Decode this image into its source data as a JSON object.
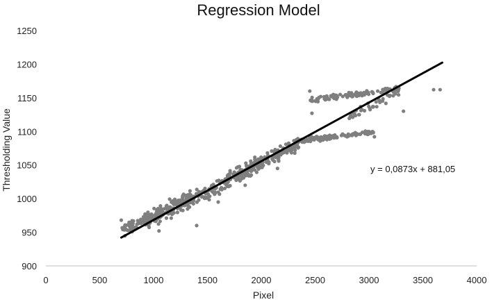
{
  "chart_data": {
    "type": "scatter",
    "title": "Regression Model",
    "xlabel": "Pixel",
    "ylabel": "Thresholding Value",
    "xlim": [
      0,
      4000
    ],
    "ylim": [
      900,
      1250
    ],
    "xticks": [
      "0",
      "500",
      "1000",
      "1500",
      "2000",
      "2500",
      "3000",
      "3500",
      "4000"
    ],
    "yticks": [
      "900",
      "950",
      "1000",
      "1050",
      "1100",
      "1150",
      "1200",
      "1250"
    ],
    "grid": false,
    "point_color": "#7f7f7f",
    "trendline": {
      "equation": "y = 0,0873x + 881,05",
      "slope": 0.0873,
      "intercept": 881.05,
      "x_start": 700,
      "x_end": 3680,
      "color": "#000000"
    },
    "clusters": [
      {
        "x_range": [
          700,
          1050
        ],
        "y_center": 965,
        "y_spread": 12,
        "count": 90
      },
      {
        "x_range": [
          950,
          1350
        ],
        "y_center": 985,
        "y_spread": 18,
        "count": 150
      },
      {
        "x_range": [
          1300,
          1700
        ],
        "y_center": 1010,
        "y_spread": 15,
        "count": 90
      },
      {
        "x_range": [
          1650,
          2000
        ],
        "y_center": 1040,
        "y_spread": 16,
        "count": 120
      },
      {
        "x_range": [
          1950,
          2350
        ],
        "y_center": 1065,
        "y_spread": 14,
        "count": 90
      },
      {
        "x_range": [
          2300,
          2650
        ],
        "y_center": 1088,
        "y_spread": 6,
        "count": 70
      },
      {
        "x_range": [
          2650,
          3050
        ],
        "y_center": 1095,
        "y_spread": 4,
        "count": 60
      },
      {
        "x_range": [
          2450,
          3300
        ],
        "y_center": 1155,
        "y_spread": 6,
        "count": 110
      },
      {
        "x_range": [
          2800,
          3300
        ],
        "y_center": 1140,
        "y_spread": 10,
        "count": 40
      }
    ],
    "outliers": [
      {
        "x": 700,
        "y": 968
      },
      {
        "x": 1050,
        "y": 952
      },
      {
        "x": 1400,
        "y": 960
      },
      {
        "x": 1600,
        "y": 995
      },
      {
        "x": 2450,
        "y": 1160
      },
      {
        "x": 2470,
        "y": 1127
      },
      {
        "x": 3320,
        "y": 1130
      },
      {
        "x": 3600,
        "y": 1162
      },
      {
        "x": 3660,
        "y": 1162
      },
      {
        "x": 3050,
        "y": 1092
      },
      {
        "x": 2150,
        "y": 1045
      },
      {
        "x": 1850,
        "y": 1020
      }
    ]
  }
}
